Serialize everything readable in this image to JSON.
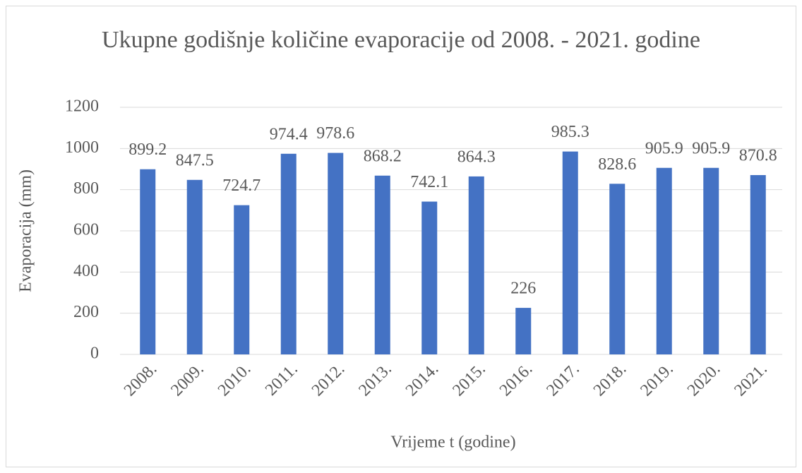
{
  "chart_data": {
    "type": "bar",
    "title": "Ukupne godišnje količine evaporacije od 2008. - 2021. godine",
    "x_label": "Vrijeme t (godine)",
    "y_label": "Evaporacija (mm)",
    "categories": [
      "2008.",
      "2009.",
      "2010.",
      "2011.",
      "2012.",
      "2013.",
      "2014.",
      "2015.",
      "2016.",
      "2017.",
      "2018.",
      "2019.",
      "2020.",
      "2021."
    ],
    "values": [
      899.2,
      847.5,
      724.7,
      974.4,
      978.6,
      868.2,
      742.1,
      864.3,
      226,
      985.3,
      828.6,
      905.9,
      905.9,
      870.8
    ],
    "color": "#4472c4",
    "ylim": [
      0,
      1200
    ],
    "yticks": [
      0,
      200,
      400,
      600,
      800,
      1000,
      1200
    ],
    "grid": true
  }
}
